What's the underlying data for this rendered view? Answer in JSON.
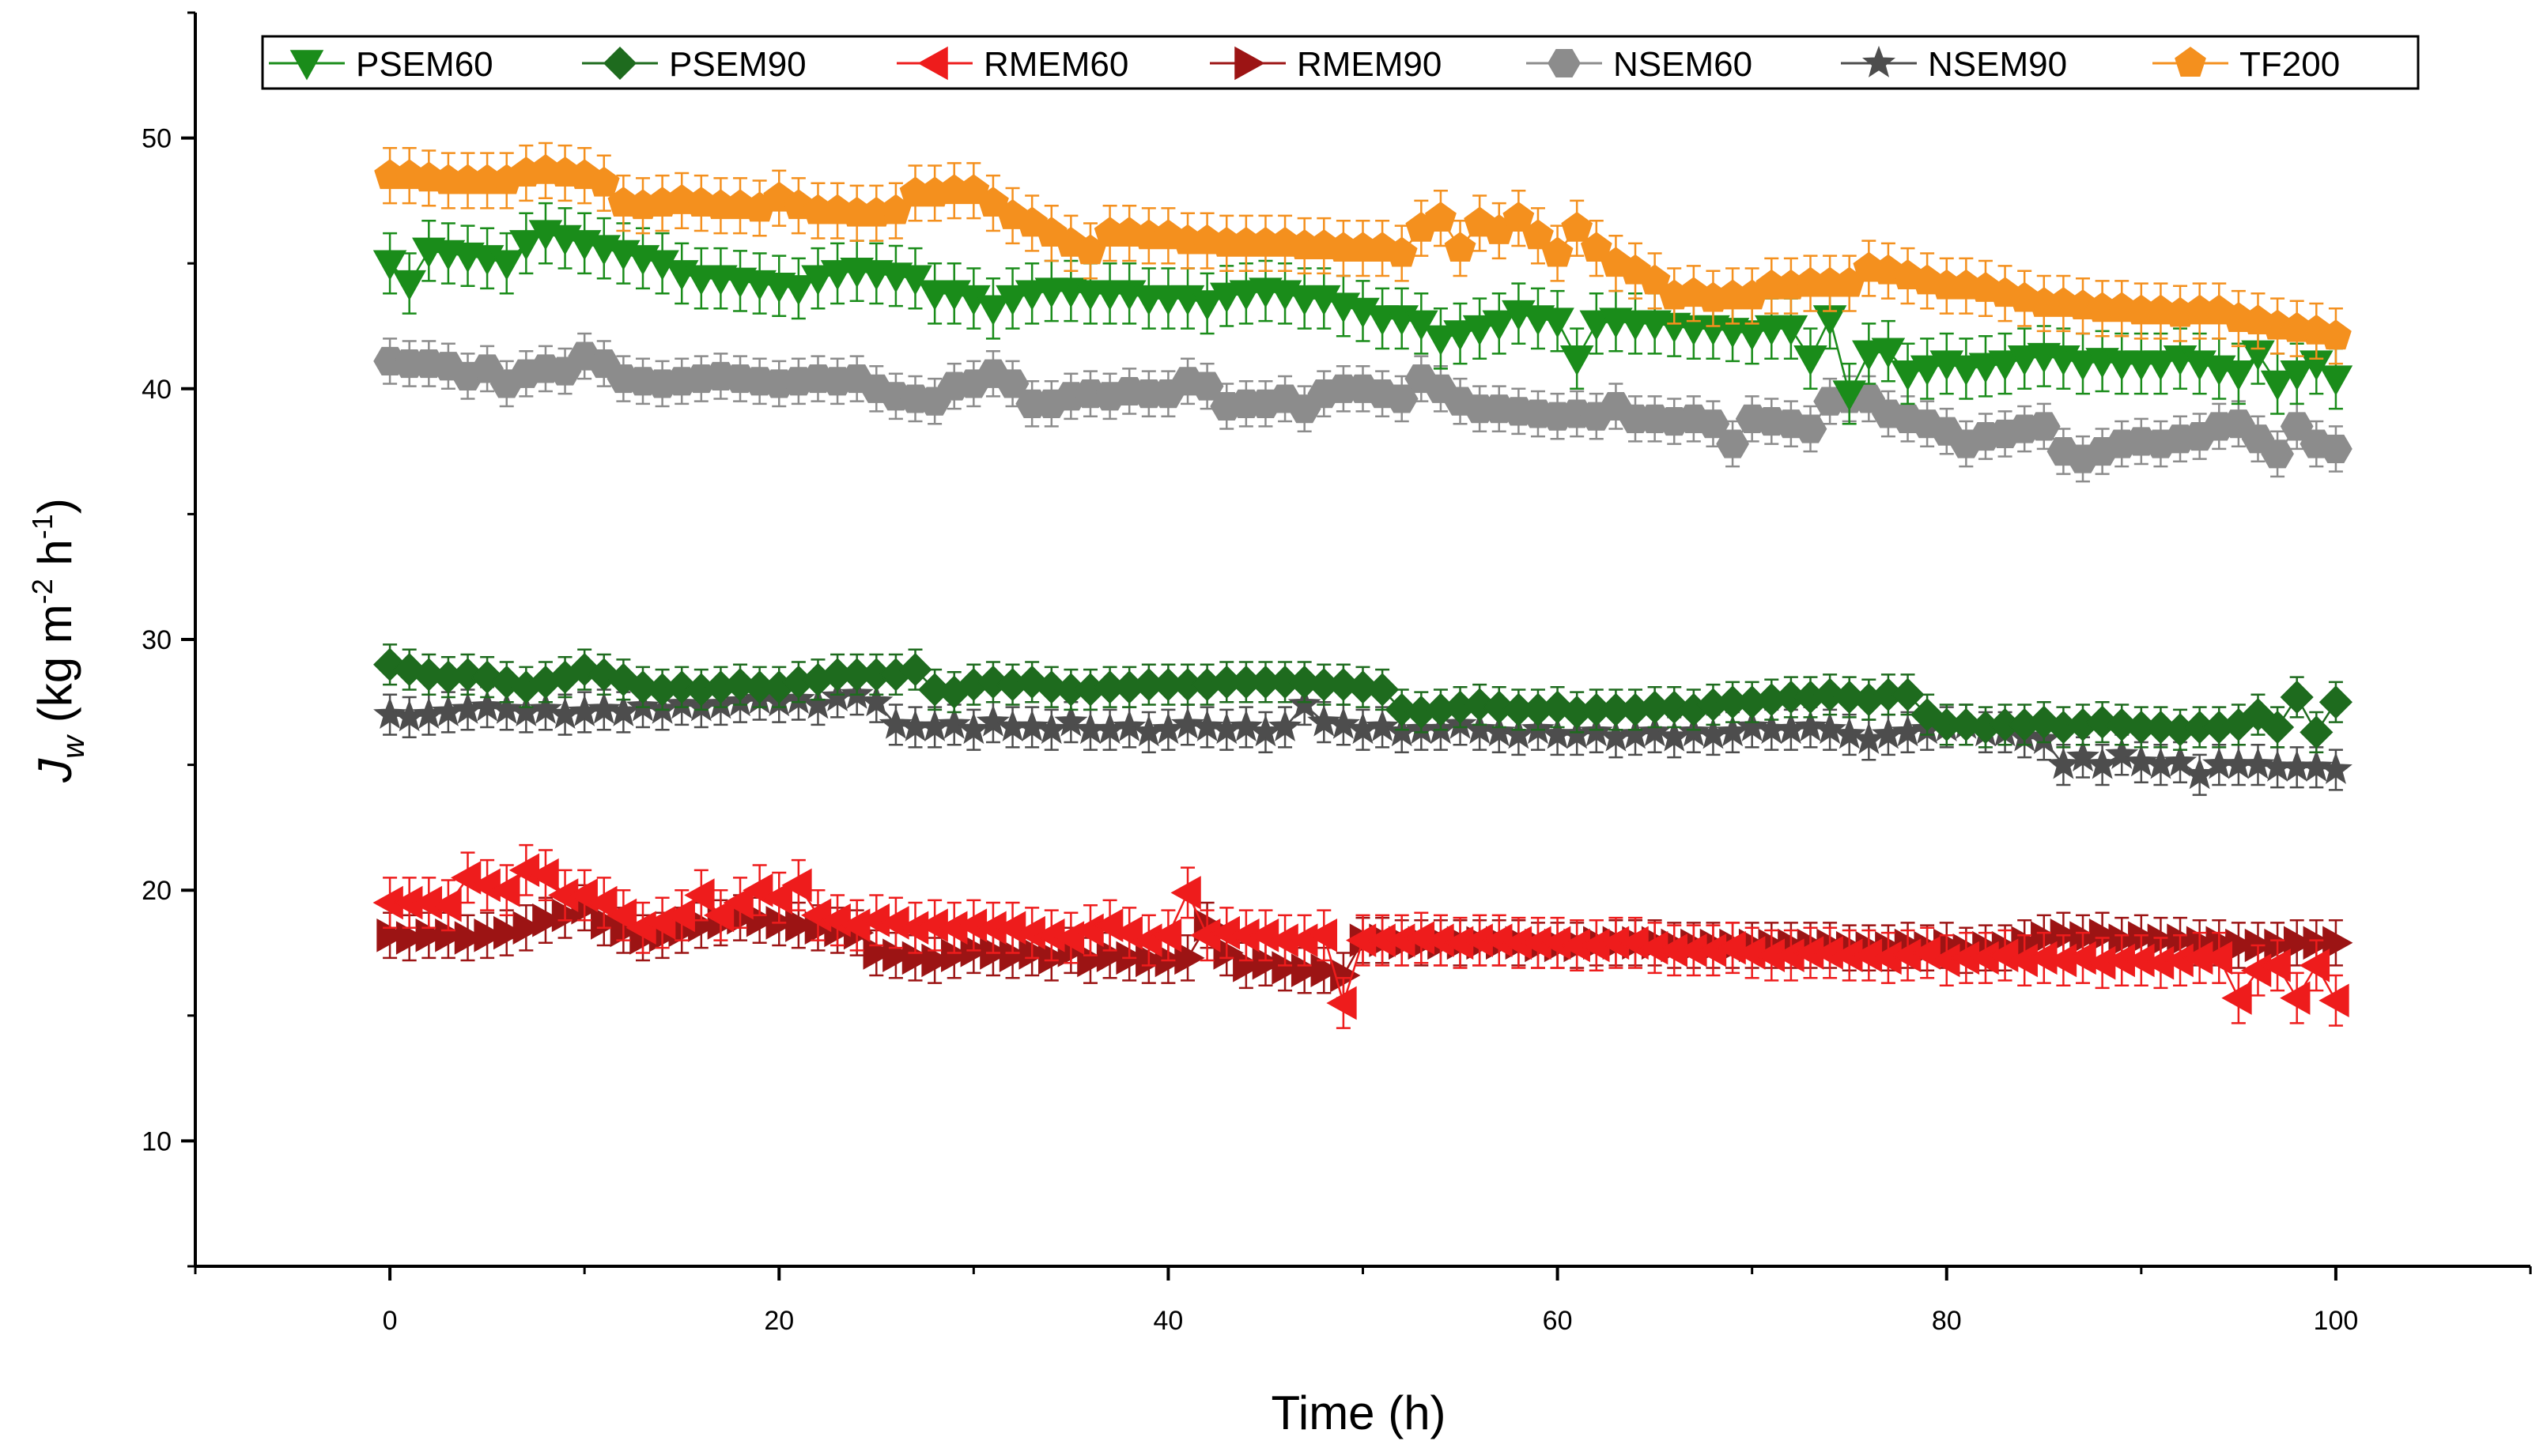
{
  "chart_data": {
    "type": "scatter",
    "title": "",
    "xlabel": "Time (h)",
    "ylabel_main": "J",
    "ylabel_sub": "w",
    "ylabel_rest": " (kg m",
    "ylabel_sup1": "-2",
    "ylabel_mid": " h",
    "ylabel_sup2": "-1",
    "ylabel_end": ")",
    "xlim": [
      -10,
      110
    ],
    "ylim": [
      5,
      55
    ],
    "xticks": [
      0,
      20,
      40,
      60,
      80,
      100
    ],
    "yticks": [
      10,
      20,
      30,
      40,
      50
    ],
    "legend_position": "top",
    "series": [
      {
        "name": "PSEM60",
        "color": "#1a8c1a",
        "marker": "triangle-down",
        "error": 1.2,
        "values": [
          45.0,
          44.2,
          45.5,
          45.4,
          45.3,
          45.2,
          45.0,
          45.8,
          46.2,
          46.0,
          45.8,
          45.6,
          45.4,
          45.2,
          45.0,
          44.6,
          44.4,
          44.4,
          44.3,
          44.2,
          44.1,
          44.0,
          44.4,
          44.6,
          44.7,
          44.6,
          44.5,
          44.4,
          43.8,
          43.8,
          43.6,
          43.2,
          43.6,
          43.8,
          43.9,
          43.9,
          43.8,
          43.8,
          43.8,
          43.6,
          43.6,
          43.6,
          43.4,
          43.7,
          43.8,
          43.9,
          43.8,
          43.6,
          43.6,
          43.3,
          43.1,
          42.8,
          42.8,
          42.6,
          42.0,
          42.2,
          42.4,
          42.6,
          43.0,
          42.8,
          42.7,
          41.2,
          42.6,
          42.7,
          42.6,
          42.6,
          42.5,
          42.4,
          42.4,
          42.3,
          42.2,
          42.4,
          42.4,
          41.2,
          42.8,
          39.8,
          41.4,
          41.5,
          40.6,
          40.8,
          41.0,
          40.8,
          40.9,
          41.0,
          41.2,
          41.3,
          41.2,
          41.0,
          41.1,
          41.0,
          41.0,
          41.0,
          41.2,
          41.0,
          40.8,
          40.6,
          41.4,
          40.2,
          40.6,
          41.0,
          40.4
        ]
      },
      {
        "name": "PSEM90",
        "color": "#1e6b1e",
        "marker": "diamond",
        "error": 0.8,
        "values": [
          29.0,
          28.8,
          28.6,
          28.5,
          28.6,
          28.5,
          28.3,
          28.1,
          28.3,
          28.5,
          28.8,
          28.6,
          28.4,
          28.1,
          28.0,
          28.1,
          28.0,
          28.1,
          28.2,
          28.1,
          28.1,
          28.3,
          28.4,
          28.6,
          28.6,
          28.6,
          28.6,
          28.8,
          28.0,
          27.9,
          28.2,
          28.3,
          28.2,
          28.3,
          28.1,
          28.0,
          28.0,
          28.1,
          28.1,
          28.2,
          28.2,
          28.2,
          28.2,
          28.3,
          28.3,
          28.3,
          28.3,
          28.3,
          28.2,
          28.2,
          28.1,
          28.0,
          27.2,
          27.1,
          27.2,
          27.3,
          27.4,
          27.3,
          27.2,
          27.2,
          27.3,
          27.1,
          27.2,
          27.2,
          27.2,
          27.3,
          27.3,
          27.2,
          27.4,
          27.5,
          27.5,
          27.6,
          27.7,
          27.7,
          27.8,
          27.7,
          27.6,
          27.8,
          27.8,
          27.0,
          26.6,
          26.6,
          26.5,
          26.6,
          26.6,
          26.7,
          26.5,
          26.6,
          26.7,
          26.6,
          26.5,
          26.5,
          26.4,
          26.5,
          26.5,
          26.6,
          27.0,
          26.5,
          27.7,
          26.3,
          27.5
        ]
      },
      {
        "name": "RMEM60",
        "color": "#ee1c1c",
        "marker": "triangle-left",
        "error": 1.0,
        "values": [
          19.5,
          19.5,
          19.5,
          19.4,
          20.5,
          20.2,
          20.0,
          20.8,
          20.6,
          19.8,
          19.8,
          19.5,
          19.0,
          18.5,
          18.7,
          19.0,
          19.8,
          19.0,
          19.5,
          20.0,
          19.7,
          20.2,
          19.0,
          18.8,
          18.6,
          18.8,
          18.7,
          18.5,
          18.6,
          18.5,
          18.6,
          18.5,
          18.5,
          18.3,
          18.2,
          18.1,
          18.4,
          18.6,
          18.3,
          18.0,
          18.2,
          19.9,
          18.2,
          18.3,
          18.2,
          18.2,
          18.0,
          18.0,
          18.2,
          15.5,
          18.0,
          18.0,
          18.0,
          18.1,
          18.0,
          17.9,
          18.0,
          18.0,
          17.9,
          17.9,
          17.9,
          17.8,
          17.8,
          17.9,
          17.9,
          17.7,
          17.6,
          17.6,
          17.6,
          17.7,
          17.5,
          17.4,
          17.4,
          17.5,
          17.5,
          17.4,
          17.4,
          17.3,
          17.4,
          17.5,
          17.2,
          17.3,
          17.3,
          17.4,
          17.2,
          17.3,
          17.2,
          17.3,
          17.1,
          17.2,
          17.2,
          17.1,
          17.2,
          17.3,
          17.3,
          15.7,
          16.8,
          17.0,
          15.7,
          17.0,
          15.6
        ]
      },
      {
        "name": "RMEM90",
        "color": "#9c1414",
        "marker": "triangle-right",
        "error": 0.9,
        "values": [
          18.2,
          18.1,
          18.2,
          18.2,
          18.1,
          18.2,
          18.3,
          18.5,
          18.8,
          19.0,
          19.3,
          18.7,
          18.4,
          18.1,
          18.2,
          18.4,
          18.6,
          18.7,
          18.9,
          18.8,
          18.7,
          18.6,
          18.5,
          18.4,
          18.3,
          17.5,
          17.4,
          17.3,
          17.2,
          17.4,
          17.6,
          17.5,
          17.4,
          17.5,
          17.3,
          17.6,
          17.2,
          17.4,
          17.3,
          17.2,
          17.2,
          17.3,
          18.6,
          17.5,
          17.0,
          17.1,
          16.9,
          16.8,
          16.8,
          16.6,
          18.0,
          18.0,
          17.9,
          17.9,
          17.9,
          17.9,
          17.9,
          17.9,
          17.9,
          17.8,
          17.8,
          17.8,
          17.9,
          17.9,
          17.9,
          17.9,
          17.8,
          17.8,
          17.8,
          17.8,
          17.8,
          17.8,
          17.8,
          17.8,
          17.8,
          17.7,
          17.7,
          17.7,
          17.8,
          17.7,
          17.8,
          17.6,
          17.7,
          17.7,
          17.9,
          18.1,
          18.2,
          18.1,
          18.2,
          18.0,
          18.1,
          18.0,
          18.0,
          17.9,
          17.9,
          17.8,
          17.8,
          17.8,
          17.9,
          17.9,
          17.9
        ]
      },
      {
        "name": "NSEM60",
        "color": "#8c8c8c",
        "marker": "hexagon",
        "error": 0.9,
        "values": [
          41.1,
          41.0,
          41.0,
          40.9,
          40.5,
          40.8,
          40.2,
          40.6,
          40.8,
          40.7,
          41.3,
          41.0,
          40.4,
          40.3,
          40.2,
          40.3,
          40.4,
          40.5,
          40.4,
          40.3,
          40.2,
          40.3,
          40.4,
          40.3,
          40.4,
          40.0,
          39.7,
          39.6,
          39.5,
          40.1,
          40.2,
          40.6,
          40.2,
          39.4,
          39.4,
          39.7,
          39.8,
          39.7,
          39.9,
          39.8,
          39.8,
          40.3,
          40.1,
          39.3,
          39.4,
          39.4,
          39.6,
          39.2,
          39.8,
          40.0,
          40.0,
          39.8,
          39.6,
          40.4,
          40.0,
          39.5,
          39.2,
          39.2,
          39.1,
          39.0,
          38.9,
          39.0,
          38.9,
          39.3,
          38.8,
          38.8,
          38.7,
          38.8,
          38.6,
          37.8,
          38.8,
          38.7,
          38.6,
          38.4,
          39.5,
          39.6,
          39.6,
          39.0,
          38.8,
          38.6,
          38.3,
          37.8,
          38.1,
          38.2,
          38.4,
          38.5,
          37.5,
          37.2,
          37.5,
          37.8,
          37.9,
          37.8,
          38.0,
          38.1,
          38.5,
          38.6,
          38.0,
          37.4,
          38.5,
          37.8,
          37.6
        ]
      },
      {
        "name": "NSEM90",
        "color": "#4d4d4d",
        "marker": "star",
        "error": 0.8,
        "values": [
          27.0,
          26.9,
          27.0,
          27.1,
          27.2,
          27.3,
          27.2,
          27.1,
          27.2,
          27.0,
          27.1,
          27.2,
          27.1,
          27.3,
          27.2,
          27.4,
          27.3,
          27.4,
          27.5,
          27.6,
          27.5,
          27.6,
          27.4,
          27.7,
          27.8,
          27.5,
          26.6,
          26.5,
          26.5,
          26.6,
          26.4,
          26.7,
          26.5,
          26.5,
          26.4,
          26.7,
          26.4,
          26.4,
          26.5,
          26.3,
          26.4,
          26.6,
          26.5,
          26.4,
          26.5,
          26.3,
          26.5,
          27.4,
          26.7,
          26.6,
          26.4,
          26.5,
          26.3,
          26.4,
          26.4,
          26.6,
          26.4,
          26.3,
          26.2,
          26.4,
          26.2,
          26.2,
          26.3,
          26.1,
          26.2,
          26.3,
          26.1,
          26.3,
          26.2,
          26.3,
          26.5,
          26.4,
          26.4,
          26.5,
          26.4,
          26.2,
          26.0,
          26.2,
          26.3,
          26.4,
          26.5,
          26.6,
          26.3,
          26.3,
          26.1,
          26.0,
          25.0,
          25.3,
          25.0,
          25.4,
          25.1,
          25.0,
          25.1,
          24.6,
          25.0,
          25.0,
          25.0,
          24.9,
          24.9,
          24.9,
          24.8
        ]
      },
      {
        "name": "TF200",
        "color": "#f4901e",
        "marker": "pentagon",
        "error": 1.1,
        "values": [
          48.5,
          48.5,
          48.4,
          48.3,
          48.3,
          48.3,
          48.3,
          48.6,
          48.7,
          48.6,
          48.5,
          48.2,
          47.4,
          47.3,
          47.4,
          47.5,
          47.4,
          47.3,
          47.3,
          47.2,
          47.6,
          47.3,
          47.1,
          47.1,
          47.0,
          47.0,
          47.1,
          47.8,
          47.8,
          47.9,
          47.9,
          47.4,
          46.9,
          46.6,
          46.2,
          45.8,
          45.5,
          46.2,
          46.2,
          46.1,
          46.1,
          45.9,
          45.9,
          45.8,
          45.8,
          45.8,
          45.8,
          45.7,
          45.7,
          45.6,
          45.6,
          45.6,
          45.4,
          46.4,
          46.8,
          45.6,
          46.6,
          46.3,
          46.8,
          46.1,
          45.4,
          46.4,
          45.6,
          45.0,
          44.7,
          44.3,
          43.7,
          43.8,
          43.6,
          43.7,
          43.7,
          44.1,
          44.1,
          44.2,
          44.2,
          44.2,
          44.8,
          44.7,
          44.5,
          44.3,
          44.1,
          44.1,
          44.0,
          43.8,
          43.6,
          43.4,
          43.4,
          43.3,
          43.2,
          43.2,
          43.1,
          43.1,
          43.0,
          43.1,
          43.1,
          42.8,
          42.7,
          42.5,
          42.4,
          42.3,
          42.1
        ]
      }
    ]
  }
}
